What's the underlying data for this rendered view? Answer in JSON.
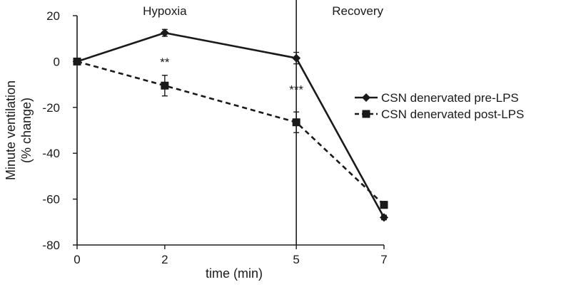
{
  "chart_data": {
    "type": "line",
    "title": "",
    "xlabel": "time (min)",
    "ylabel": [
      "Minute ventilation",
      "(% change)"
    ],
    "x": [
      0,
      2,
      5,
      7
    ],
    "xticks": [
      "0",
      "2",
      "5",
      "7"
    ],
    "xlim": [
      0,
      7
    ],
    "ylim": [
      -80,
      20
    ],
    "yticks": [
      20,
      0,
      -20,
      -40,
      -60,
      -80
    ],
    "grid": false,
    "legend_position": "right",
    "series": [
      {
        "name": "CSN denervated pre-LPS",
        "values": [
          0,
          12.5,
          1.5,
          -68
        ],
        "errors": [
          0,
          1.5,
          2.5,
          1
        ],
        "marker": "diamond",
        "line_style": "solid",
        "color": "#1a1a1a"
      },
      {
        "name": "CSN denervated post-LPS",
        "values": [
          0,
          -10.5,
          -26.5,
          -62.5
        ],
        "errors": [
          0,
          4.5,
          4.5,
          1.5
        ],
        "marker": "square",
        "line_style": "dashed",
        "color": "#1a1a1a"
      }
    ],
    "annotations": [
      {
        "text": "**",
        "x": 2,
        "y": -2
      },
      {
        "text": "***",
        "x": 5,
        "y": -14
      }
    ],
    "phases": [
      {
        "label": "Hypoxia",
        "x": 2
      },
      {
        "label": "Recovery",
        "x": 6.4
      }
    ],
    "divider_x": 5
  }
}
